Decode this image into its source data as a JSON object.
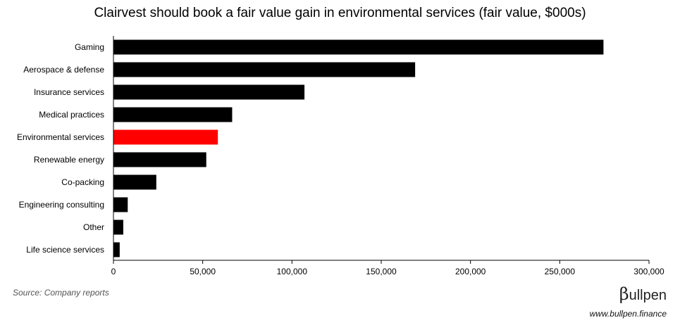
{
  "chart_data": {
    "type": "bar",
    "orientation": "horizontal",
    "title": "Clairvest should book a fair value gain in environmental services (fair value, $000s)",
    "categories": [
      "Gaming",
      "Aerospace & defense",
      "Insurance services",
      "Medical practices",
      "Environmental services",
      "Renewable energy",
      "Co-packing",
      "Engineering consulting",
      "Other",
      "Life science services"
    ],
    "values": [
      274500,
      169000,
      107000,
      66500,
      58500,
      52000,
      24000,
      8000,
      5500,
      3500
    ],
    "highlight_category": "Environmental services",
    "xlim": [
      0,
      300000
    ],
    "xticks": [
      0,
      50000,
      100000,
      150000,
      200000,
      250000,
      300000
    ],
    "xtick_labels": [
      "0",
      "50,000",
      "100,000",
      "150,000",
      "200,000",
      "250,000",
      "300,000"
    ],
    "xlabel": "",
    "ylabel": "",
    "grid": false,
    "legend": "none",
    "colors": {
      "bar": "#000000",
      "highlight": "#ff0000",
      "axis": "#000000"
    }
  },
  "footer": {
    "source": "Source: Company reports",
    "brand_beta": "β",
    "brand_rest": "ullpen",
    "website": "www.bullpen.finance"
  }
}
